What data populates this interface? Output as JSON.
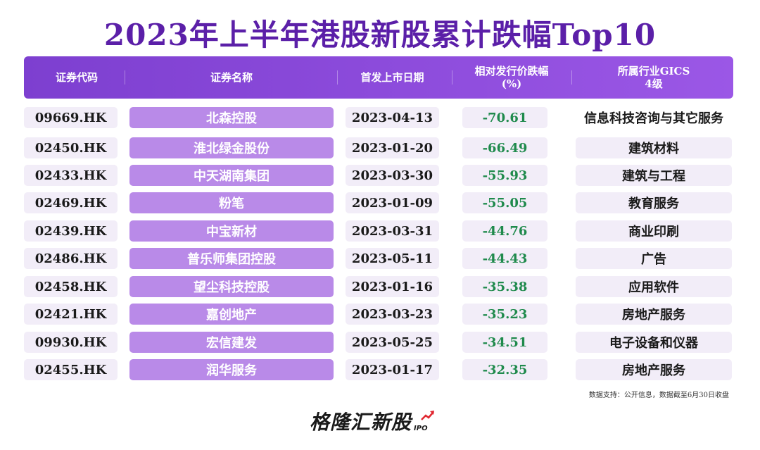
{
  "title": "2023年上半年港股新股累计跌幅Top10",
  "header": {
    "code": "证券代码",
    "name": "证券名称",
    "date": "首发上市日期",
    "change_line1": "相对发行价跌幅",
    "change_line2": "(%)",
    "industry_line1": "所属行业GICS",
    "industry_line2": "4级"
  },
  "rows": [
    {
      "code": "09669.HK",
      "name": "北森控股",
      "date": "2023-04-13",
      "change": "-70.61",
      "industry": "信息科技咨询与其它服务"
    },
    {
      "code": "02450.HK",
      "name": "淮北绿金股份",
      "date": "2023-01-20",
      "change": "-66.49",
      "industry": "建筑材料"
    },
    {
      "code": "02433.HK",
      "name": "中天湖南集团",
      "date": "2023-03-30",
      "change": "-55.93",
      "industry": "建筑与工程"
    },
    {
      "code": "02469.HK",
      "name": "粉笔",
      "date": "2023-01-09",
      "change": "-55.05",
      "industry": "教育服务"
    },
    {
      "code": "02439.HK",
      "name": "中宝新材",
      "date": "2023-03-31",
      "change": "-44.76",
      "industry": "商业印刷"
    },
    {
      "code": "02486.HK",
      "name": "普乐师集团控股",
      "date": "2023-05-11",
      "change": "-44.43",
      "industry": "广告"
    },
    {
      "code": "02458.HK",
      "name": "望尘科技控股",
      "date": "2023-01-16",
      "change": "-35.38",
      "industry": "应用软件"
    },
    {
      "code": "02421.HK",
      "name": "嘉创地产",
      "date": "2023-03-23",
      "change": "-35.23",
      "industry": "房地产服务"
    },
    {
      "code": "09930.HK",
      "name": "宏信建发",
      "date": "2023-05-25",
      "change": "-34.51",
      "industry": "电子设备和仪器"
    },
    {
      "code": "02455.HK",
      "name": "润华服务",
      "date": "2023-01-17",
      "change": "-32.35",
      "industry": "房地产服务"
    }
  ],
  "source": "数据支持：公开信息，数据截至6月30日收盘",
  "logo": {
    "text": "格隆汇新股",
    "sub": "IPO",
    "icon": "trend-up-arrow-icon"
  },
  "colors": {
    "title": "#5b1fa8",
    "header_bg": "#8a4ad9",
    "name_bg": "#b98ae8",
    "cell_bg": "#f2edf8",
    "change_text": "#1f8a4c"
  }
}
